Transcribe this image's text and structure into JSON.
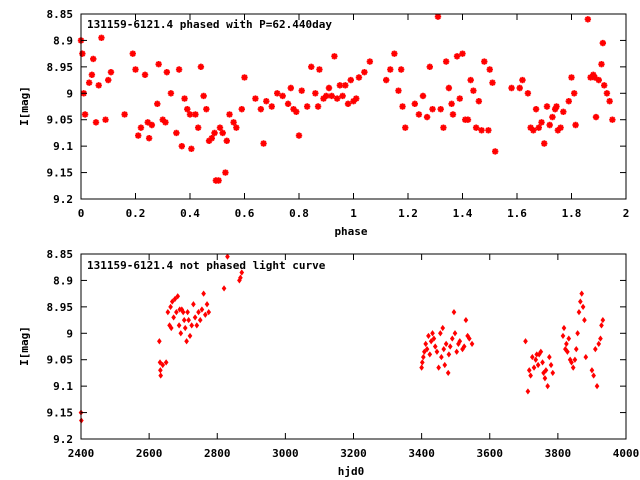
{
  "chart_data": [
    {
      "type": "scatter",
      "title": "131159-6121.4 phased with P=62.440day",
      "xlabel": "phase",
      "ylabel": "I[mag]",
      "xlim": [
        0,
        2
      ],
      "ylim": [
        9.2,
        8.85
      ],
      "y_inverted": true,
      "grid": false,
      "marker": "plus",
      "color": "#ff0000",
      "xticks": [
        "0",
        "0.2",
        "0.4",
        "0.6",
        "0.8",
        "1",
        "1.2",
        "1.4",
        "1.6",
        "1.8",
        "2"
      ],
      "yticks": [
        "8.85",
        "8.9",
        "8.95",
        "9",
        "9.05",
        "9.1",
        "9.15",
        "9.2"
      ],
      "points": [
        [
          0.0,
          8.9
        ],
        [
          0.005,
          8.925
        ],
        [
          0.01,
          9.0
        ],
        [
          0.015,
          9.04
        ],
        [
          0.03,
          8.98
        ],
        [
          0.04,
          8.965
        ],
        [
          0.045,
          8.935
        ],
        [
          0.055,
          9.055
        ],
        [
          0.065,
          8.985
        ],
        [
          0.075,
          8.895
        ],
        [
          0.09,
          9.05
        ],
        [
          0.1,
          8.975
        ],
        [
          0.11,
          8.96
        ],
        [
          0.16,
          9.04
        ],
        [
          0.19,
          8.925
        ],
        [
          0.2,
          8.955
        ],
        [
          0.21,
          9.08
        ],
        [
          0.22,
          9.065
        ],
        [
          0.235,
          8.965
        ],
        [
          0.245,
          9.055
        ],
        [
          0.25,
          9.085
        ],
        [
          0.26,
          9.06
        ],
        [
          0.28,
          9.02
        ],
        [
          0.285,
          8.945
        ],
        [
          0.3,
          9.05
        ],
        [
          0.31,
          9.055
        ],
        [
          0.315,
          8.96
        ],
        [
          0.33,
          9.0
        ],
        [
          0.35,
          9.075
        ],
        [
          0.36,
          8.955
        ],
        [
          0.37,
          9.1
        ],
        [
          0.38,
          9.01
        ],
        [
          0.39,
          9.03
        ],
        [
          0.4,
          9.04
        ],
        [
          0.405,
          9.105
        ],
        [
          0.42,
          9.04
        ],
        [
          0.43,
          9.065
        ],
        [
          0.44,
          8.95
        ],
        [
          0.45,
          9.005
        ],
        [
          0.46,
          9.03
        ],
        [
          0.47,
          9.09
        ],
        [
          0.48,
          9.085
        ],
        [
          0.49,
          9.075
        ],
        [
          0.495,
          9.165
        ],
        [
          0.505,
          9.165
        ],
        [
          0.51,
          9.065
        ],
        [
          0.52,
          9.075
        ],
        [
          0.53,
          9.15
        ],
        [
          0.535,
          9.09
        ],
        [
          0.545,
          9.04
        ],
        [
          0.56,
          9.055
        ],
        [
          0.57,
          9.065
        ],
        [
          0.59,
          9.03
        ],
        [
          0.6,
          8.97
        ],
        [
          0.64,
          9.01
        ],
        [
          0.66,
          9.03
        ],
        [
          0.67,
          9.095
        ],
        [
          0.68,
          9.015
        ],
        [
          0.7,
          9.025
        ],
        [
          0.72,
          9.0
        ],
        [
          0.74,
          9.005
        ],
        [
          0.76,
          9.02
        ],
        [
          0.77,
          8.99
        ],
        [
          0.78,
          9.03
        ],
        [
          0.79,
          9.035
        ],
        [
          0.8,
          9.08
        ],
        [
          0.81,
          8.995
        ],
        [
          0.83,
          9.025
        ],
        [
          0.845,
          8.95
        ],
        [
          0.86,
          9.0
        ],
        [
          0.87,
          9.025
        ],
        [
          0.875,
          8.955
        ],
        [
          0.89,
          9.01
        ],
        [
          0.9,
          9.005
        ],
        [
          0.91,
          8.99
        ],
        [
          0.92,
          9.005
        ],
        [
          0.93,
          8.93
        ],
        [
          0.94,
          9.01
        ],
        [
          0.95,
          8.985
        ],
        [
          0.96,
          9.005
        ],
        [
          0.97,
          8.985
        ],
        [
          0.98,
          9.02
        ],
        [
          0.99,
          8.975
        ],
        [
          1.0,
          9.015
        ],
        [
          1.01,
          9.01
        ],
        [
          1.02,
          8.97
        ],
        [
          1.04,
          8.96
        ],
        [
          1.06,
          8.94
        ],
        [
          1.12,
          8.975
        ],
        [
          1.135,
          8.955
        ],
        [
          1.15,
          8.925
        ],
        [
          1.165,
          8.995
        ],
        [
          1.175,
          8.955
        ],
        [
          1.18,
          9.025
        ],
        [
          1.19,
          9.065
        ],
        [
          1.225,
          9.02
        ],
        [
          1.24,
          9.04
        ],
        [
          1.255,
          9.005
        ],
        [
          1.27,
          9.045
        ],
        [
          1.28,
          8.95
        ],
        [
          1.29,
          9.03
        ],
        [
          1.31,
          8.855
        ],
        [
          1.32,
          9.03
        ],
        [
          1.33,
          9.065
        ],
        [
          1.34,
          8.94
        ],
        [
          1.35,
          8.99
        ],
        [
          1.36,
          9.02
        ],
        [
          1.365,
          9.04
        ],
        [
          1.38,
          8.93
        ],
        [
          1.39,
          9.01
        ],
        [
          1.4,
          8.925
        ],
        [
          1.41,
          9.05
        ],
        [
          1.42,
          9.05
        ],
        [
          1.43,
          8.975
        ],
        [
          1.44,
          8.995
        ],
        [
          1.45,
          9.065
        ],
        [
          1.46,
          9.015
        ],
        [
          1.47,
          9.07
        ],
        [
          1.48,
          8.94
        ],
        [
          1.495,
          9.07
        ],
        [
          1.5,
          8.955
        ],
        [
          1.51,
          8.98
        ],
        [
          1.52,
          9.11
        ],
        [
          1.58,
          8.99
        ],
        [
          1.61,
          8.99
        ],
        [
          1.62,
          8.975
        ],
        [
          1.64,
          9.0
        ],
        [
          1.65,
          9.065
        ],
        [
          1.66,
          9.07
        ],
        [
          1.67,
          9.03
        ],
        [
          1.68,
          9.065
        ],
        [
          1.69,
          9.055
        ],
        [
          1.7,
          9.095
        ],
        [
          1.71,
          9.025
        ],
        [
          1.72,
          9.06
        ],
        [
          1.73,
          9.045
        ],
        [
          1.74,
          9.03
        ],
        [
          1.745,
          9.025
        ],
        [
          1.75,
          9.07
        ],
        [
          1.76,
          9.065
        ],
        [
          1.77,
          9.035
        ],
        [
          1.79,
          9.015
        ],
        [
          1.8,
          8.97
        ],
        [
          1.81,
          9.0
        ],
        [
          1.815,
          9.06
        ],
        [
          1.86,
          8.86
        ],
        [
          1.87,
          8.97
        ],
        [
          1.88,
          8.965
        ],
        [
          1.885,
          8.97
        ],
        [
          1.89,
          9.045
        ],
        [
          1.9,
          8.975
        ],
        [
          1.91,
          8.945
        ],
        [
          1.915,
          8.905
        ],
        [
          1.92,
          8.985
        ],
        [
          1.93,
          9.0
        ],
        [
          1.94,
          9.015
        ],
        [
          1.95,
          9.05
        ]
      ]
    },
    {
      "type": "scatter",
      "title": "131159-6121.4 not phased light curve",
      "xlabel": "hjd0",
      "ylabel": "I[mag]",
      "xlim": [
        2400,
        4000
      ],
      "ylim": [
        9.2,
        8.85
      ],
      "y_inverted": true,
      "grid": false,
      "marker": "diamond",
      "color": "#ff0000",
      "xticks": [
        "2400",
        "2600",
        "2800",
        "3000",
        "3200",
        "3400",
        "3600",
        "3800",
        "4000"
      ],
      "yticks": [
        "8.85",
        "8.9",
        "8.95",
        "9",
        "9.05",
        "9.1",
        "9.15",
        "9.2"
      ],
      "points": [
        [
          2400,
          9.15
        ],
        [
          2401,
          9.165
        ],
        [
          2630,
          9.015
        ],
        [
          2632,
          9.055
        ],
        [
          2633,
          9.07
        ],
        [
          2634,
          9.08
        ],
        [
          2640,
          9.06
        ],
        [
          2650,
          9.055
        ],
        [
          2655,
          8.96
        ],
        [
          2660,
          8.985
        ],
        [
          2663,
          8.95
        ],
        [
          2665,
          8.99
        ],
        [
          2668,
          8.94
        ],
        [
          2672,
          8.97
        ],
        [
          2676,
          8.935
        ],
        [
          2680,
          8.96
        ],
        [
          2684,
          8.93
        ],
        [
          2688,
          8.985
        ],
        [
          2690,
          8.955
        ],
        [
          2693,
          9.0
        ],
        [
          2696,
          8.955
        ],
        [
          2700,
          8.96
        ],
        [
          2703,
          8.975
        ],
        [
          2706,
          8.99
        ],
        [
          2710,
          9.015
        ],
        [
          2713,
          8.96
        ],
        [
          2716,
          8.975
        ],
        [
          2720,
          9.005
        ],
        [
          2725,
          8.985
        ],
        [
          2730,
          8.945
        ],
        [
          2735,
          8.97
        ],
        [
          2740,
          8.985
        ],
        [
          2745,
          8.96
        ],
        [
          2750,
          8.975
        ],
        [
          2755,
          8.955
        ],
        [
          2760,
          8.925
        ],
        [
          2765,
          8.965
        ],
        [
          2770,
          8.945
        ],
        [
          2775,
          8.96
        ],
        [
          2820,
          8.915
        ],
        [
          2830,
          8.855
        ],
        [
          2865,
          8.9
        ],
        [
          2868,
          8.895
        ],
        [
          2872,
          8.885
        ],
        [
          3400,
          9.065
        ],
        [
          3402,
          9.055
        ],
        [
          3405,
          9.045
        ],
        [
          3408,
          9.035
        ],
        [
          3412,
          9.02
        ],
        [
          3416,
          9.03
        ],
        [
          3420,
          9.005
        ],
        [
          3424,
          9.04
        ],
        [
          3428,
          9.015
        ],
        [
          3432,
          9.0
        ],
        [
          3436,
          9.01
        ],
        [
          3440,
          9.025
        ],
        [
          3445,
          9.035
        ],
        [
          3450,
          9.065
        ],
        [
          3455,
          9.0
        ],
        [
          3458,
          9.045
        ],
        [
          3462,
          8.99
        ],
        [
          3465,
          9.03
        ],
        [
          3468,
          9.06
        ],
        [
          3472,
          9.02
        ],
        [
          3478,
          9.075
        ],
        [
          3480,
          9.04
        ],
        [
          3484,
          9.025
        ],
        [
          3490,
          9.01
        ],
        [
          3495,
          8.96
        ],
        [
          3498,
          9.0
        ],
        [
          3503,
          9.035
        ],
        [
          3508,
          9.02
        ],
        [
          3512,
          9.015
        ],
        [
          3520,
          9.03
        ],
        [
          3525,
          9.025
        ],
        [
          3530,
          8.975
        ],
        [
          3535,
          9.005
        ],
        [
          3540,
          9.01
        ],
        [
          3548,
          9.02
        ],
        [
          3705,
          9.015
        ],
        [
          3712,
          9.11
        ],
        [
          3716,
          9.07
        ],
        [
          3720,
          9.08
        ],
        [
          3725,
          9.045
        ],
        [
          3730,
          9.065
        ],
        [
          3735,
          9.05
        ],
        [
          3738,
          9.04
        ],
        [
          3742,
          9.06
        ],
        [
          3745,
          9.04
        ],
        [
          3750,
          9.035
        ],
        [
          3755,
          9.055
        ],
        [
          3758,
          9.075
        ],
        [
          3762,
          9.085
        ],
        [
          3765,
          9.07
        ],
        [
          3770,
          9.1
        ],
        [
          3775,
          9.045
        ],
        [
          3780,
          9.06
        ],
        [
          3785,
          9.075
        ],
        [
          3815,
          9.005
        ],
        [
          3818,
          8.99
        ],
        [
          3822,
          9.03
        ],
        [
          3825,
          9.02
        ],
        [
          3828,
          9.035
        ],
        [
          3832,
          9.01
        ],
        [
          3836,
          9.05
        ],
        [
          3840,
          9.055
        ],
        [
          3845,
          9.065
        ],
        [
          3850,
          9.05
        ],
        [
          3854,
          9.03
        ],
        [
          3858,
          9.0
        ],
        [
          3862,
          8.96
        ],
        [
          3866,
          8.94
        ],
        [
          3870,
          8.925
        ],
        [
          3874,
          8.95
        ],
        [
          3878,
          8.975
        ],
        [
          3882,
          9.045
        ],
        [
          3900,
          9.07
        ],
        [
          3905,
          9.08
        ],
        [
          3910,
          9.03
        ],
        [
          3915,
          9.1
        ],
        [
          3920,
          9.02
        ],
        [
          3925,
          9.01
        ],
        [
          3928,
          8.985
        ],
        [
          3932,
          8.975
        ]
      ]
    }
  ]
}
